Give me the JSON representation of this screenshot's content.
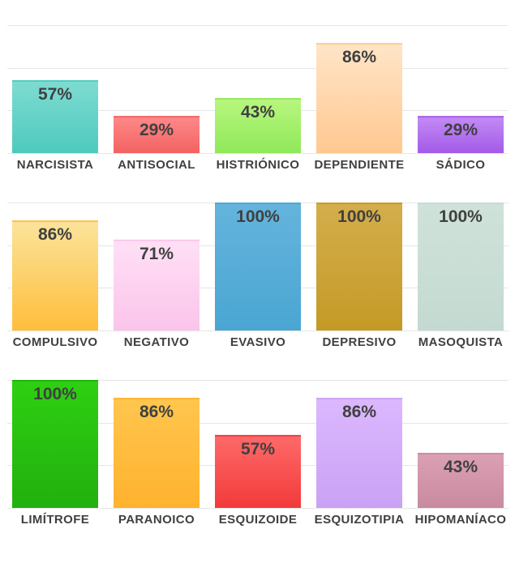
{
  "chart_data": [
    {
      "type": "bar",
      "categories": [
        "NARCISISTA",
        "ANTISOCIAL",
        "HISTRIÓNICO",
        "DEPENDIENTE",
        "SÁDICO"
      ],
      "values": [
        57,
        29,
        43,
        86,
        29
      ],
      "value_labels": [
        "57%",
        "29%",
        "43%",
        "86%",
        "29%"
      ],
      "colors": [
        [
          "#7fdcd2",
          "#4ec9be"
        ],
        [
          "#ff8a8a",
          "#f26262"
        ],
        [
          "#b9f77f",
          "#8fe85a"
        ],
        [
          "#ffe5c8",
          "#ffc890"
        ],
        [
          "#c48cf5",
          "#a35ae8"
        ]
      ],
      "ylim": [
        0,
        100
      ],
      "grid": true
    },
    {
      "type": "bar",
      "categories": [
        "COMPULSIVO",
        "NEGATIVO",
        "EVASIVO",
        "DEPRESIVO",
        "MASOQUISTA"
      ],
      "values": [
        86,
        71,
        100,
        100,
        100
      ],
      "value_labels": [
        "86%",
        "71%",
        "100%",
        "100%",
        "100%"
      ],
      "colors": [
        [
          "#fbe49c",
          "#ffbe3c"
        ],
        [
          "#ffe0f6",
          "#fbc4ea"
        ],
        [
          "#64b4dc",
          "#4aa6d2"
        ],
        [
          "#d4ae4c",
          "#c49a26"
        ],
        [
          "#cfe2da",
          "#c4dad1"
        ]
      ],
      "ylim": [
        0,
        100
      ],
      "grid": true
    },
    {
      "type": "bar",
      "categories": [
        "LIMÍTROFE",
        "PARANOICO",
        "ESQUIZOIDE",
        "ESQUIZOTIPIA",
        "HIPOMANÍACO"
      ],
      "values": [
        100,
        86,
        57,
        86,
        43
      ],
      "value_labels": [
        "100%",
        "86%",
        "57%",
        "86%",
        "43%"
      ],
      "colors": [
        [
          "#2ed012",
          "#22b00e"
        ],
        [
          "#ffc64e",
          "#ffb22e"
        ],
        [
          "#ff6a6a",
          "#f23a3a"
        ],
        [
          "#dcb8ff",
          "#c9a2f4"
        ],
        [
          "#dca0b4",
          "#c88aa0"
        ]
      ],
      "ylim": [
        0,
        100
      ],
      "grid": true
    }
  ]
}
